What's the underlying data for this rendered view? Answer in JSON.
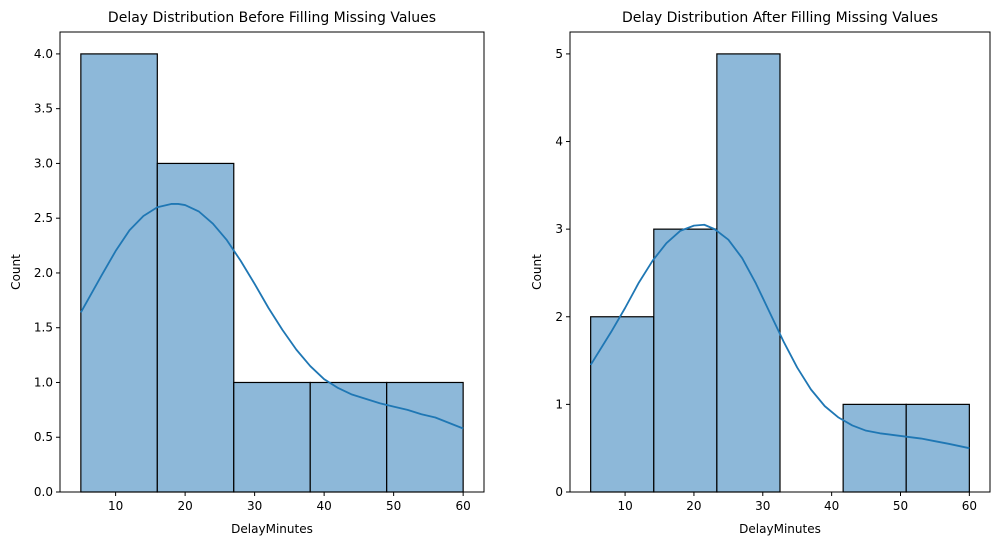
{
  "figure": {
    "background": "#ffffff"
  },
  "colors": {
    "bar_fill": "#8db8d9",
    "bar_edge": "#000000",
    "kde_line": "#1f77b4"
  },
  "chart_data": [
    {
      "type": "bar",
      "subtype": "histogram_with_kde",
      "title": "Delay Distribution Before Filling Missing Values",
      "xlabel": "DelayMinutes",
      "ylabel": "Count",
      "xlim": [
        2,
        63
      ],
      "ylim": [
        0,
        4.2
      ],
      "xticks": [
        10,
        20,
        30,
        40,
        50,
        60
      ],
      "xtick_labels": [
        "10",
        "20",
        "30",
        "40",
        "50",
        "60"
      ],
      "yticks": [
        0,
        0.5,
        1,
        1.5,
        2,
        2.5,
        3,
        3.5,
        4
      ],
      "ytick_labels": [
        "0.0",
        "0.5",
        "1.0",
        "1.5",
        "2.0",
        "2.5",
        "3.0",
        "3.5",
        "4.0"
      ],
      "bins": [
        {
          "x0": 5,
          "x1": 16,
          "count": 4
        },
        {
          "x0": 16,
          "x1": 27,
          "count": 3
        },
        {
          "x0": 27,
          "x1": 38,
          "count": 1
        },
        {
          "x0": 38,
          "x1": 49,
          "count": 1
        },
        {
          "x0": 49,
          "x1": 60,
          "count": 1
        }
      ],
      "kde": {
        "x": [
          5,
          8,
          10,
          12,
          14,
          16,
          18,
          19,
          20,
          22,
          24,
          26,
          28,
          30,
          32,
          34,
          36,
          38,
          40,
          42,
          44,
          46,
          48,
          50,
          52,
          54,
          56,
          58,
          60
        ],
        "y": [
          1.64,
          1.98,
          2.2,
          2.39,
          2.52,
          2.6,
          2.63,
          2.63,
          2.62,
          2.56,
          2.45,
          2.3,
          2.11,
          1.9,
          1.68,
          1.48,
          1.3,
          1.15,
          1.03,
          0.95,
          0.89,
          0.85,
          0.81,
          0.78,
          0.75,
          0.71,
          0.68,
          0.63,
          0.58
        ]
      },
      "grid": false,
      "legend": "none"
    },
    {
      "type": "bar",
      "subtype": "histogram_with_kde",
      "title": "Delay Distribution After Filling Missing Values",
      "xlabel": "DelayMinutes",
      "ylabel": "Count",
      "xlim": [
        2,
        63
      ],
      "ylim": [
        0,
        5.25
      ],
      "xticks": [
        10,
        20,
        30,
        40,
        50,
        60
      ],
      "xtick_labels": [
        "10",
        "20",
        "30",
        "40",
        "50",
        "60"
      ],
      "yticks": [
        0,
        1,
        2,
        3,
        4,
        5
      ],
      "ytick_labels": [
        "0",
        "1",
        "2",
        "3",
        "4",
        "5"
      ],
      "bins": [
        {
          "x0": 5,
          "x1": 14.17,
          "count": 2
        },
        {
          "x0": 14.17,
          "x1": 23.33,
          "count": 3
        },
        {
          "x0": 23.33,
          "x1": 32.5,
          "count": 5
        },
        {
          "x0": 32.5,
          "x1": 41.67,
          "count": 0
        },
        {
          "x0": 41.67,
          "x1": 50.83,
          "count": 1
        },
        {
          "x0": 50.83,
          "x1": 60,
          "count": 1
        }
      ],
      "kde": {
        "x": [
          5,
          8,
          10,
          12,
          14,
          16,
          18,
          20,
          21.5,
          23,
          25,
          27,
          29,
          31,
          33,
          35,
          37,
          39,
          41,
          43,
          45,
          47,
          49,
          51,
          53,
          55,
          57,
          60
        ],
        "y": [
          1.45,
          1.83,
          2.1,
          2.39,
          2.64,
          2.84,
          2.98,
          3.04,
          3.05,
          3.0,
          2.88,
          2.67,
          2.38,
          2.05,
          1.72,
          1.42,
          1.17,
          0.98,
          0.85,
          0.76,
          0.7,
          0.67,
          0.65,
          0.63,
          0.61,
          0.58,
          0.55,
          0.5
        ]
      },
      "grid": false,
      "legend": "none"
    }
  ]
}
